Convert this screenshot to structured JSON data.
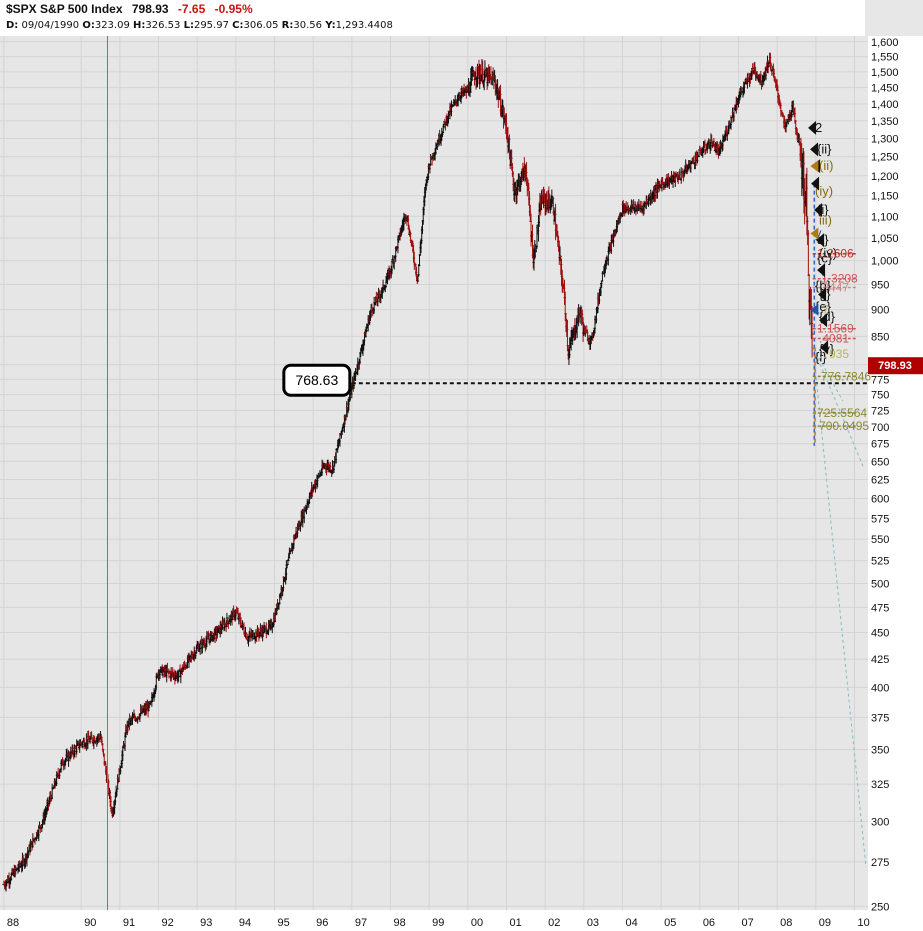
{
  "header": {
    "ticker": "$SPX S&P 500 Index",
    "last": "798.93",
    "change": "-7.65",
    "change_pct": "-0.95%",
    "date_label": "D:",
    "date": "09/04/1990",
    "open_label": "O:",
    "open": "323.09",
    "high_label": "H:",
    "high": "326.53",
    "low_label": "L:",
    "low": "295.97",
    "close_label": "C:",
    "close": "306.05",
    "range_label": "R:",
    "range": "30.56",
    "y_label": "Y:",
    "y": "1,293.4408"
  },
  "colors": {
    "up_bar": "#111111",
    "down_bar": "#a01010",
    "price_tag": "#b00000",
    "grid": "#d4d4d4",
    "plot_bg": "#e6e6e6",
    "cursor_line": "#4a8c96",
    "fib_dash": "#7fbfbf",
    "level_dash": "#111111"
  },
  "chart_data": {
    "type": "ohlc-bar",
    "title": "$SPX S&P 500 Index",
    "y_scale": "log",
    "ylim": [
      248,
      1620
    ],
    "x_range_years": [
      1987.9,
      2010.35
    ],
    "grid": true,
    "y_ticks": [
      "1,600",
      "1,550",
      "1,500",
      "1,450",
      "1,400",
      "1,350",
      "1,300",
      "1,250",
      "1,200",
      "1,150",
      "1,100",
      "1,050",
      "1,000",
      "950",
      "900",
      "850",
      "800",
      "775",
      "750",
      "725",
      "700",
      "675",
      "650",
      "625",
      "600",
      "575",
      "550",
      "525",
      "500",
      "475",
      "450",
      "425",
      "400",
      "375",
      "350",
      "325",
      "300",
      "275",
      "250"
    ],
    "x_ticks": [
      "88",
      "90",
      "91",
      "92",
      "93",
      "94",
      "95",
      "96",
      "97",
      "98",
      "99",
      "00",
      "01",
      "02",
      "03",
      "04",
      "05",
      "06",
      "07",
      "08",
      "09",
      "10"
    ],
    "anchor_points": [
      {
        "x": 1988.0,
        "y": 262
      },
      {
        "x": 1988.5,
        "y": 275
      },
      {
        "x": 1989.0,
        "y": 300
      },
      {
        "x": 1989.5,
        "y": 340
      },
      {
        "x": 1990.0,
        "y": 355
      },
      {
        "x": 1990.5,
        "y": 360
      },
      {
        "x": 1990.8,
        "y": 305
      },
      {
        "x": 1991.2,
        "y": 370
      },
      {
        "x": 1991.8,
        "y": 385
      },
      {
        "x": 1992.0,
        "y": 415
      },
      {
        "x": 1992.5,
        "y": 410
      },
      {
        "x": 1993.0,
        "y": 435
      },
      {
        "x": 1993.5,
        "y": 450
      },
      {
        "x": 1994.0,
        "y": 470
      },
      {
        "x": 1994.3,
        "y": 445
      },
      {
        "x": 1994.9,
        "y": 455
      },
      {
        "x": 1995.0,
        "y": 465
      },
      {
        "x": 1995.5,
        "y": 550
      },
      {
        "x": 1996.0,
        "y": 615
      },
      {
        "x": 1996.3,
        "y": 645
      },
      {
        "x": 1996.5,
        "y": 640
      },
      {
        "x": 1997.0,
        "y": 760
      },
      {
        "x": 1997.5,
        "y": 900
      },
      {
        "x": 1997.8,
        "y": 940
      },
      {
        "x": 1998.0,
        "y": 980
      },
      {
        "x": 1998.4,
        "y": 1110
      },
      {
        "x": 1998.7,
        "y": 960
      },
      {
        "x": 1998.9,
        "y": 1170
      },
      {
        "x": 1999.0,
        "y": 1230
      },
      {
        "x": 1999.5,
        "y": 1370
      },
      {
        "x": 1999.8,
        "y": 1430
      },
      {
        "x": 2000.0,
        "y": 1440
      },
      {
        "x": 2000.2,
        "y": 1500
      },
      {
        "x": 2000.7,
        "y": 1470
      },
      {
        "x": 2001.0,
        "y": 1330
      },
      {
        "x": 2001.2,
        "y": 1160
      },
      {
        "x": 2001.5,
        "y": 1220
      },
      {
        "x": 2001.7,
        "y": 1000
      },
      {
        "x": 2001.9,
        "y": 1140
      },
      {
        "x": 2002.2,
        "y": 1130
      },
      {
        "x": 2002.5,
        "y": 920
      },
      {
        "x": 2002.6,
        "y": 820
      },
      {
        "x": 2002.9,
        "y": 900
      },
      {
        "x": 2003.0,
        "y": 860
      },
      {
        "x": 2003.2,
        "y": 840
      },
      {
        "x": 2003.5,
        "y": 980
      },
      {
        "x": 2004.0,
        "y": 1120
      },
      {
        "x": 2004.5,
        "y": 1120
      },
      {
        "x": 2005.0,
        "y": 1180
      },
      {
        "x": 2005.5,
        "y": 1200
      },
      {
        "x": 2006.0,
        "y": 1260
      },
      {
        "x": 2006.3,
        "y": 1290
      },
      {
        "x": 2006.5,
        "y": 1260
      },
      {
        "x": 2007.0,
        "y": 1420
      },
      {
        "x": 2007.4,
        "y": 1510
      },
      {
        "x": 2007.6,
        "y": 1470
      },
      {
        "x": 2007.8,
        "y": 1540
      },
      {
        "x": 2008.0,
        "y": 1440
      },
      {
        "x": 2008.2,
        "y": 1330
      },
      {
        "x": 2008.4,
        "y": 1390
      },
      {
        "x": 2008.6,
        "y": 1260
      },
      {
        "x": 2008.75,
        "y": 1130
      },
      {
        "x": 2008.85,
        "y": 900
      },
      {
        "x": 2008.92,
        "y": 830
      }
    ],
    "last_price": "798.93",
    "horizontal_level": {
      "value": 768.63,
      "label": "768.63"
    },
    "cursor_date": "09/04/1990",
    "labels": [
      {
        "text": "2",
        "y": 1330,
        "color": "#111111"
      },
      {
        "text": "{ii}",
        "y": 1270,
        "color": "#111111"
      },
      {
        "text": "(ii)",
        "y": 1225,
        "color": "#8a6a10"
      },
      {
        "text": "(iy)",
        "y": 1160,
        "color": "#8a6a10"
      },
      {
        "text": "{i}",
        "y": 1115,
        "color": "#111111"
      },
      {
        "text": "iii)",
        "y": 1090,
        "color": "#8a6a10"
      },
      {
        "text": "y",
        "y": 1060,
        "color": "#2255aa"
      },
      {
        "text": "a}",
        "y": 1045,
        "color": "#111111"
      },
      {
        "text": "(iv)",
        "y": 1015,
        "color": "#111111"
      },
      {
        "text": "1.2606",
        "y": 1015,
        "color": "#bb3333"
      },
      {
        "text": "{c}",
        "y": 1005,
        "color": "#111111"
      },
      {
        "text": "1.3208",
        "y": 962,
        "color": "#cc5555"
      },
      {
        "text": "{b}",
        "y": 947,
        "color": "#111111"
      },
      {
        "text": ".3447",
        "y": 944,
        "color": "#cc8888"
      },
      {
        "text": "{j}",
        "y": 930,
        "color": "#111111"
      },
      {
        "text": "{e}",
        "y": 905,
        "color": "#111111"
      },
      {
        "text": ".7",
        "y": 900,
        "color": "#b5b560"
      },
      {
        "text": "{d}",
        "y": 886,
        "color": "#111111"
      },
      {
        "text": "1.1569",
        "y": 864,
        "color": "#cc5555"
      },
      {
        "text": ".4081",
        "y": 846,
        "color": "#cc5555"
      },
      {
        "text": "{v}",
        "y": 826,
        "color": "#111111"
      },
      {
        "text": "{i}",
        "y": 812,
        "color": "#111111"
      },
      {
        "text": ".7935",
        "y": 818,
        "color": "#b5b560"
      },
      {
        "text": "776.7846",
        "y": 780,
        "color": "#8a8a30"
      },
      {
        "text": "725.5564",
        "y": 721,
        "color": "#8a8a30"
      },
      {
        "text": "700.0495",
        "y": 701,
        "color": "#8a8a30"
      }
    ]
  }
}
